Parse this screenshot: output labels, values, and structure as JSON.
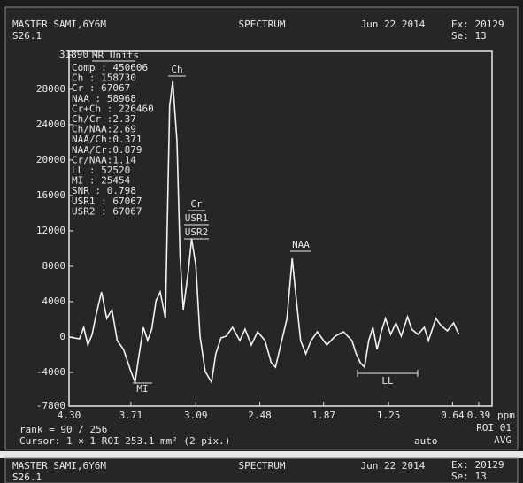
{
  "chart_data": {
    "type": "line",
    "y_label": "MR Units",
    "x_unit": "ppm",
    "x": [
      4.3,
      4.2,
      4.16,
      4.12,
      4.08,
      4.04,
      3.99,
      3.94,
      3.89,
      3.84,
      3.78,
      3.71,
      3.67,
      3.63,
      3.59,
      3.55,
      3.51,
      3.47,
      3.43,
      3.38,
      3.34,
      3.31,
      3.27,
      3.24,
      3.21,
      3.16,
      3.13,
      3.09,
      3.05,
      3.0,
      2.94,
      2.9,
      2.85,
      2.8,
      2.74,
      2.67,
      2.62,
      2.56,
      2.5,
      2.43,
      2.37,
      2.33,
      2.28,
      2.22,
      2.17,
      2.13,
      2.09,
      2.04,
      1.99,
      1.93,
      1.84,
      1.76,
      1.68,
      1.6,
      1.56,
      1.52,
      1.48,
      1.44,
      1.4,
      1.36,
      1.32,
      1.28,
      1.23,
      1.18,
      1.13,
      1.07,
      1.03,
      0.97,
      0.91,
      0.87,
      0.8,
      0.75,
      0.69,
      0.63,
      0.58
    ],
    "values": [
      0,
      -200,
      1100,
      -900,
      300,
      2600,
      5100,
      2100,
      3100,
      -400,
      -1400,
      -3900,
      -5100,
      -1900,
      1100,
      -400,
      900,
      4100,
      5100,
      2100,
      26100,
      28900,
      22100,
      9100,
      3100,
      7600,
      11100,
      8100,
      100,
      -3900,
      -5100,
      -1900,
      -100,
      100,
      1100,
      -400,
      900,
      -900,
      600,
      -400,
      -2900,
      -3400,
      -900,
      2100,
      8900,
      4100,
      -400,
      -1900,
      -400,
      600,
      -900,
      100,
      600,
      -400,
      -1900,
      -2900,
      -3400,
      -400,
      1100,
      -1400,
      600,
      2100,
      300,
      1600,
      100,
      2300,
      900,
      300,
      1100,
      -400,
      2100,
      1300,
      700,
      1600,
      300
    ],
    "color": "#f2f2f2",
    "xlim": [
      4.3,
      0.39
    ],
    "xticks": [
      {
        "value": 4.3,
        "label": "4.30"
      },
      3.71,
      3.09,
      2.48,
      1.87,
      1.25,
      0.64,
      0.39
    ],
    "ylim": [
      -7800,
      31890
    ],
    "yticks": [
      -7800,
      -4000,
      0,
      4000,
      8000,
      12000,
      16000,
      20000,
      24000,
      28000,
      31890
    ],
    "annotations": [
      "Ch",
      "Cr",
      "USR1",
      "USR2",
      "NAA",
      "MI",
      "LL"
    ],
    "metrics": [
      "Comp   : 450606",
      "Ch     : 158730",
      "Cr     : 67067",
      "NAA    : 58968",
      "Cr+Ch  : 226460",
      "Ch/Cr  :2.37",
      "Ch/NAA:2.69",
      "NAA/Ch:0.371",
      "NAA/Cr:0.879",
      "Cr/NAA:1.14",
      "LL     : 52520",
      "MI     : 25454",
      "SNR    : 0.798",
      "USR1   : 67067",
      "USR2   : 67067"
    ]
  },
  "header": {
    "patient": "MASTER SAMI,6Y6M",
    "series": "S26.1",
    "title": "SPECTRUM",
    "date": "Jun 22 2014",
    "exam": "Ex: 20129",
    "se": "Se: 13"
  },
  "footer": {
    "rank": "rank = 90 / 256",
    "roi": "ROI 01",
    "cursor": "Cursor: 1 × 1  ROI 253.1 mm² (2 pix.)",
    "auto": "auto",
    "avg": "AVG"
  },
  "next_header": {
    "patient": "MASTER SAMI,6Y6M",
    "series": "S26.1",
    "title": "SPECTRUM",
    "date": "Jun 22 2014",
    "exam": "Ex: 20129",
    "se": "Se: 13"
  }
}
